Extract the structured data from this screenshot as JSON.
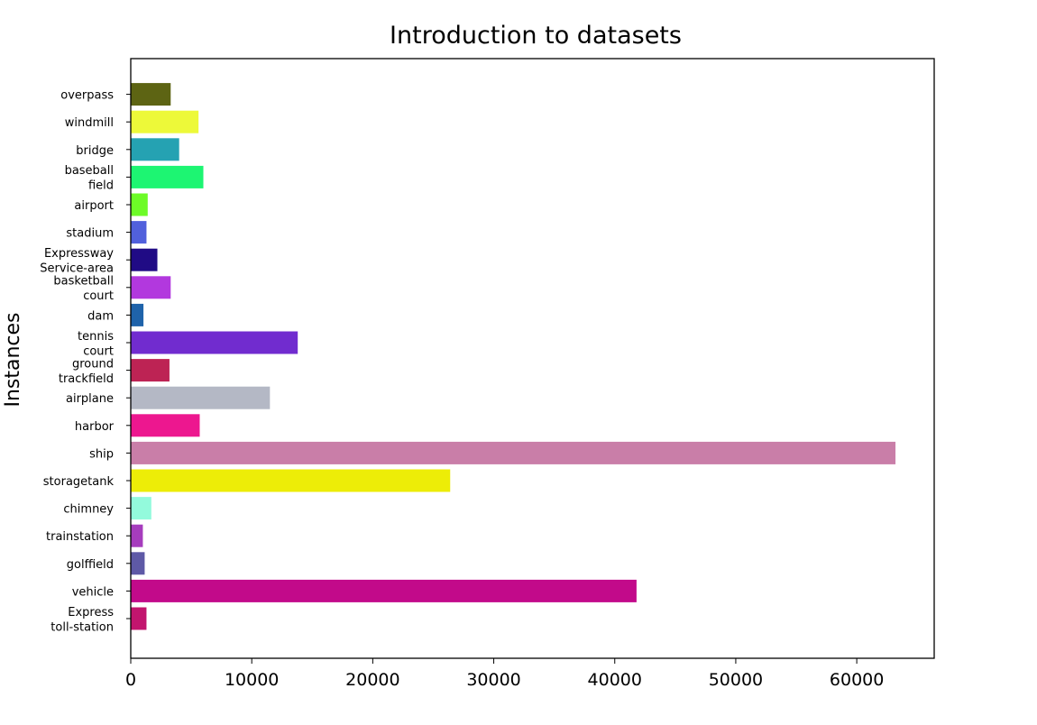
{
  "chart_data": {
    "type": "bar",
    "orientation": "horizontal",
    "title": "Introduction to datasets",
    "ylabel": "Instances",
    "xlabel": "",
    "xlim": [
      0,
      66400
    ],
    "xticks": [
      0,
      10000,
      20000,
      30000,
      40000,
      50000,
      60000
    ],
    "xtick_labels": [
      "0",
      "10000",
      "20000",
      "30000",
      "40000",
      "50000",
      "60000"
    ],
    "grid": false,
    "categories": [
      [
        "Express",
        "toll-station"
      ],
      [
        "vehicle"
      ],
      [
        "golffield"
      ],
      [
        "trainstation"
      ],
      [
        "chimney"
      ],
      [
        "storagetank"
      ],
      [
        "ship"
      ],
      [
        "harbor"
      ],
      [
        "airplane"
      ],
      [
        "ground",
        "trackfield"
      ],
      [
        "tennis",
        "court"
      ],
      [
        "dam"
      ],
      [
        "basketball",
        "court"
      ],
      [
        "Expressway",
        "Service-area"
      ],
      [
        "stadium"
      ],
      [
        "airport"
      ],
      [
        "baseball",
        "field"
      ],
      [
        "bridge"
      ],
      [
        "windmill"
      ],
      [
        "overpass"
      ]
    ],
    "values": [
      1300,
      41800,
      1150,
      1000,
      1700,
      26400,
      63200,
      5700,
      11500,
      3200,
      13800,
      1050,
      3300,
      2200,
      1300,
      1400,
      6000,
      4000,
      5600,
      3300
    ],
    "colors": [
      "#c2156e",
      "#c20a8a",
      "#5e59a6",
      "#a63cbd",
      "#93fadc",
      "#eded07",
      "#c97ea8",
      "#ed178f",
      "#b4b8c5",
      "#bd2354",
      "#712ccf",
      "#1f63aa",
      "#b238de",
      "#200b85",
      "#5160dc",
      "#6dfb27",
      "#1df572",
      "#25a2b2",
      "#edf939",
      "#5d6413"
    ]
  }
}
